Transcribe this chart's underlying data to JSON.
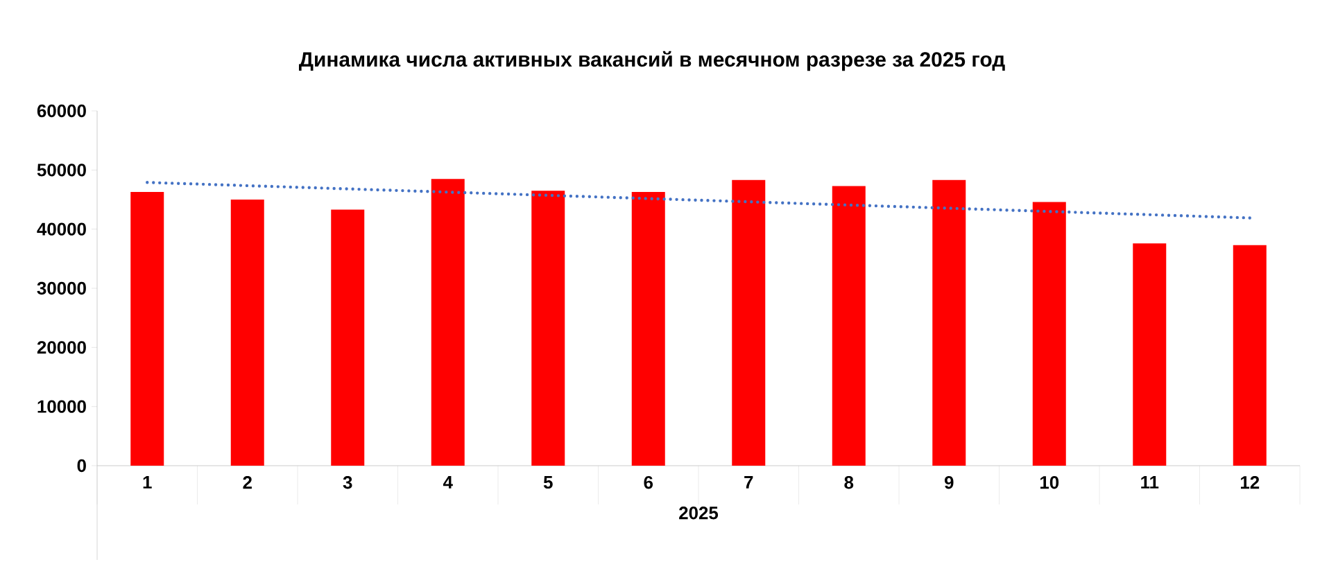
{
  "chart_data": {
    "type": "bar",
    "title": "Динамика числа активных вакансий в месячном разрезе за 2025 год",
    "xlabel": "2025",
    "categories": [
      "1",
      "2",
      "3",
      "4",
      "5",
      "6",
      "7",
      "8",
      "9",
      "10",
      "11",
      "12"
    ],
    "series": [
      {
        "color": "#ff0000",
        "values": [
          46300,
          45000,
          43300,
          48500,
          46500,
          46300,
          48300,
          47300,
          48300,
          44600,
          37600,
          37300
        ]
      },
      {
        "type": "line",
        "color": "#4472c4",
        "line_style": "dotted",
        "x": [
          "1",
          "12"
        ],
        "values": [
          47900,
          41900
        ]
      }
    ],
    "ylim": [
      0,
      60000
    ],
    "yticks": [
      0,
      10000,
      20000,
      30000,
      40000,
      50000,
      60000
    ],
    "grid": false
  }
}
